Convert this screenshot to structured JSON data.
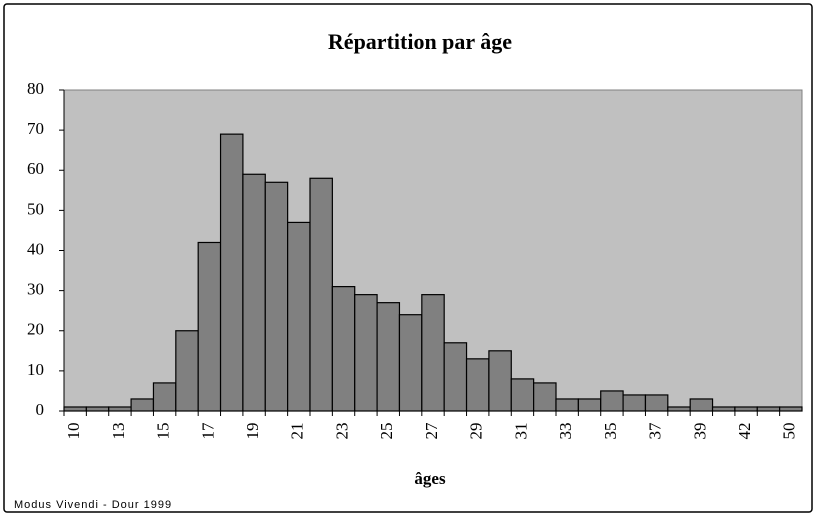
{
  "chart_data": {
    "type": "bar",
    "title": "Répartition par âge",
    "x_label": "âges",
    "footer": "Modus Vivendi - Dour 1999",
    "categories": [
      "10",
      null,
      "13",
      null,
      "15",
      null,
      "17",
      null,
      "19",
      null,
      "21",
      null,
      "23",
      null,
      "25",
      null,
      "27",
      null,
      "29",
      null,
      "31",
      null,
      "33",
      null,
      "35",
      null,
      "37",
      null,
      "39",
      null,
      "42",
      null,
      "50"
    ],
    "values": [
      1,
      1,
      1,
      3,
      7,
      20,
      42,
      69,
      59,
      57,
      47,
      58,
      31,
      29,
      27,
      24,
      29,
      17,
      13,
      15,
      8,
      7,
      3,
      3,
      5,
      4,
      4,
      1,
      3,
      1,
      1,
      1,
      1
    ],
    "color": "#808080",
    "background": "#c0c0c0",
    "ylim": [
      0,
      80
    ],
    "yticks": [
      0,
      10,
      20,
      30,
      40,
      50,
      60,
      70,
      80
    ]
  }
}
